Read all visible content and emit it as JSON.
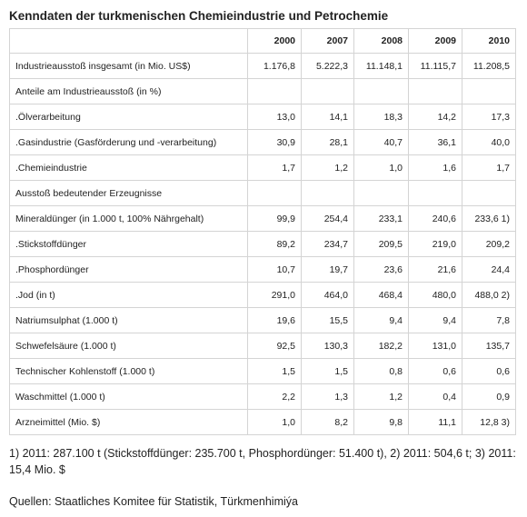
{
  "title": "Kenndaten der turkmenischen Chemieindustrie und Petrochemie",
  "table": {
    "columns": [
      "",
      "2000",
      "2007",
      "2008",
      "2009",
      "2010"
    ],
    "rows": [
      {
        "label": "Industrieausstoß insgesamt (in Mio. US$)",
        "values": [
          "1.176,8",
          "5.222,3",
          "11.148,1",
          "11.115,7",
          "11.208,5"
        ]
      },
      {
        "label": "Anteile am Industrieausstoß (in %)",
        "values": [
          "",
          "",
          "",
          "",
          ""
        ]
      },
      {
        "label": ".Ölverarbeitung",
        "values": [
          "13,0",
          "14,1",
          "18,3",
          "14,2",
          "17,3"
        ]
      },
      {
        "label": ".Gasindustrie (Gasförderung und -verarbeitung)",
        "values": [
          "30,9",
          "28,1",
          "40,7",
          "36,1",
          "40,0"
        ]
      },
      {
        "label": ".Chemieindustrie",
        "values": [
          "1,7",
          "1,2",
          "1,0",
          "1,6",
          "1,7"
        ]
      },
      {
        "label": "Ausstoß bedeutender Erzeugnisse",
        "values": [
          "",
          "",
          "",
          "",
          ""
        ]
      },
      {
        "label": "Mineraldünger (in 1.000 t, 100% Nährgehalt)",
        "values": [
          "99,9",
          "254,4",
          "233,1",
          "240,6",
          "233,6 1)"
        ]
      },
      {
        "label": ".Stickstoffdünger",
        "values": [
          "89,2",
          "234,7",
          "209,5",
          "219,0",
          "209,2"
        ]
      },
      {
        "label": ".Phosphordünger",
        "values": [
          "10,7",
          "19,7",
          "23,6",
          "21,6",
          "24,4"
        ]
      },
      {
        "label": ".Jod (in t)",
        "values": [
          "291,0",
          "464,0",
          "468,4",
          "480,0",
          "488,0 2)"
        ]
      },
      {
        "label": "Natriumsulphat (1.000 t)",
        "values": [
          "19,6",
          "15,5",
          "9,4",
          "9,4",
          "7,8"
        ]
      },
      {
        "label": "Schwefelsäure (1.000 t)",
        "values": [
          "92,5",
          "130,3",
          "182,2",
          "131,0",
          "135,7"
        ]
      },
      {
        "label": "Technischer Kohlenstoff (1.000 t)",
        "values": [
          "1,5",
          "1,5",
          "0,8",
          "0,6",
          "0,6"
        ]
      },
      {
        "label": "Waschmittel (1.000 t)",
        "values": [
          "2,2",
          "1,3",
          "1,2",
          "0,4",
          "0,9"
        ]
      },
      {
        "label": "Arzneimittel (Mio. $)",
        "values": [
          "1,0",
          "8,2",
          "9,8",
          "11,1",
          "12,8 3)"
        ]
      }
    ]
  },
  "footnote": "1) 2011: 287.100 t (Stickstoffdünger: 235.700 t, Phosphordünger: 51.400 t), 2) 2011: 504,6 t; 3) 2011: 15,4 Mio. $",
  "source": "Quellen: Staatliches Komitee für Statistik, Türkmenhimiýa"
}
